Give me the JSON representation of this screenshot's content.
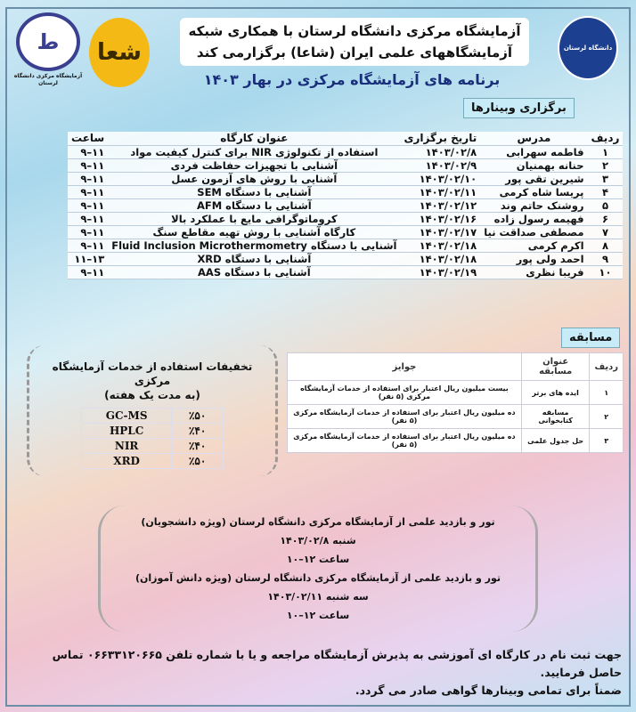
{
  "header": {
    "title_line1": "آزمایشگاه مرکزی دانشگاه لرستان با همکاری شبکه",
    "title_line2": "آزمایشگاههای علمی ایران (شاعا) برگزارمی کند",
    "subtitle": "برنامه های آزمایشگاه مرکزی در بهار ۱۴۰۳",
    "left_logo_text": "آزمایشگاه مرکزی دانشگاه لرستان",
    "university_logo_text": "دانشگاه لرستان"
  },
  "webinars": {
    "tag": "برگزاری وبینارها",
    "headers": [
      "ردیف",
      "مدرس",
      "تاریخ برگزاری",
      "عنوان کارگاه",
      "ساعت"
    ],
    "rows": [
      [
        "۱",
        "فاطمه سهرابی",
        "۱۴۰۳/۰۲/۸",
        "استفاده از تکنولوژی NIR برای کنترل کیفیت مواد",
        "۹–۱۱"
      ],
      [
        "۲",
        "حنانه بهمنیان",
        "۱۴۰۳/۰۲/۹",
        "آشنایی با تجهیزات حفاظت فردی",
        "۹–۱۱"
      ],
      [
        "۳",
        "شیرین تقی پور",
        "۱۴۰۳/۰۲/۱۰",
        "آشنایی با روش های آزمون عسل",
        "۹–۱۱"
      ],
      [
        "۴",
        "پریسا شاه کرمی",
        "۱۴۰۳/۰۲/۱۱",
        "آشنایی با دستگاه SEM",
        "۹–۱۱"
      ],
      [
        "۵",
        "روشنک حاتم وند",
        "۱۴۰۳/۰۲/۱۲",
        "آشنایی با دستگاه AFM",
        "۹–۱۱"
      ],
      [
        "۶",
        "فهیمه رسول زاده",
        "۱۴۰۳/۰۲/۱۶",
        "کروماتوگرافی مایع با عملکرد بالا",
        "۹–۱۱"
      ],
      [
        "۷",
        "مصطفی صداقت نیا",
        "۱۴۰۳/۰۲/۱۷",
        "کارگاه آشنایی با روش تهیه مقاطع سنگ",
        "۹–۱۱"
      ],
      [
        "۸",
        "اکرم کرمی",
        "۱۴۰۳/۰۲/۱۸",
        "آشنایی با دستگاه Fluid Inclusion Microthermometry",
        "۹–۱۱"
      ],
      [
        "۹",
        "احمد ولی پور",
        "۱۴۰۳/۰۲/۱۸",
        "آشنایی با دستگاه XRD",
        "۱۱–۱۳"
      ],
      [
        "۱۰",
        "فریبا نظری",
        "۱۴۰۳/۰۲/۱۹",
        "آشنایی با دستگاه AAS",
        "۹–۱۱"
      ]
    ]
  },
  "competition": {
    "tag": "مسابقه",
    "headers": [
      "ردیف",
      "عنوان مسابقه",
      "جوایز"
    ],
    "rows": [
      [
        "۱",
        "ایده های برتر",
        "بیست میلیون ریال اعتبار برای استفاده از خدمات آزمایشگاه مرکزی (۵ نفر)"
      ],
      [
        "۲",
        "مسابقه کتابخوانی",
        "ده میلیون ریال اعتبار برای استفاده از خدمات آزمایشگاه مرکزی (۵ نفر)"
      ],
      [
        "۳",
        "حل جدول علمی",
        "ده میلیون ریال اعتبار برای استفاده از خدمات آزمایشگاه مرکزی (۵ نفر)"
      ]
    ]
  },
  "discounts": {
    "title": "تخفیفات استفاده از خدمات آزمایشگاه مرکزی",
    "subtitle": "(به مدت یک هفته)",
    "rows": [
      [
        "GC-MS",
        "٪۵۰"
      ],
      [
        "HPLC",
        "٪۴۰"
      ],
      [
        "NIR",
        "٪۴۰"
      ],
      [
        "XRD",
        "٪۵۰"
      ]
    ]
  },
  "tours": {
    "lines": [
      "تور و بازدید علمی از آزمایشگاه مرکزی دانشگاه لرستان (ویژه دانشجویان)",
      "شنبه ۱۴۰۳/۰۲/۸",
      "ساعت ۱۲–۱۰",
      "تور و بازدید علمی از آزمایشگاه مرکزی دانشگاه لرستان (ویژه دانش آموزان)",
      "سه شنبه ۱۴۰۳/۰۲/۱۱",
      "ساعت ۱۲–۱۰"
    ]
  },
  "footer": {
    "line1": "جهت ثبت نام در کارگاه ای آموزشی به پذیرش آزمایشگاه مراجعه و یا با شماره تلفن ۰۶۶۳۳۱۲۰۶۶۵ تماس حاصل فرمایید.",
    "line2": "ضمناً برای تمامی وبینارها گواهی صادر می گردد."
  }
}
